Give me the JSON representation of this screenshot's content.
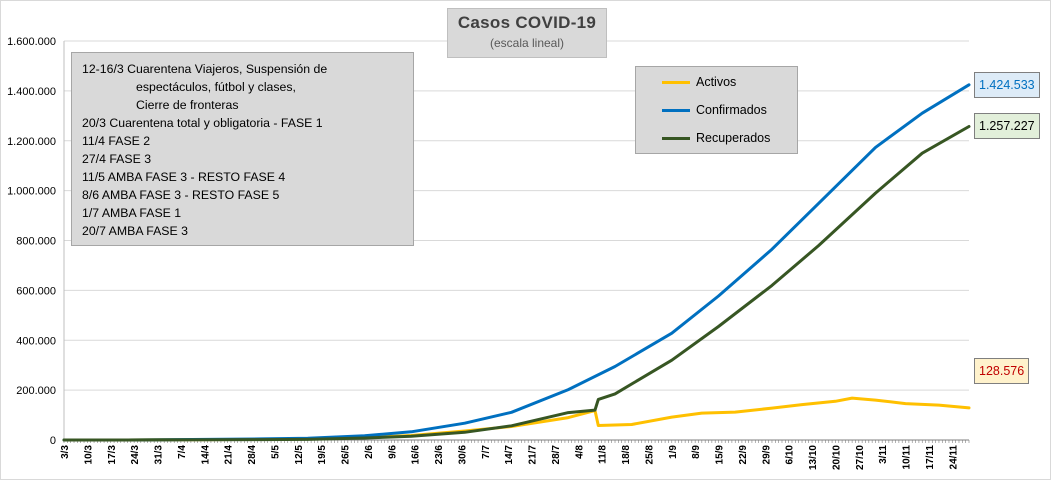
{
  "chart_data": {
    "type": "line",
    "title": "Casos COVID-19",
    "subtitle": "(escala lineal)",
    "xlabel": "",
    "ylabel": "",
    "ylim": [
      0,
      1600000
    ],
    "yticks": [
      0,
      200000,
      400000,
      600000,
      800000,
      1000000,
      1200000,
      1400000,
      1600000
    ],
    "ytick_labels": [
      "0",
      "200.000",
      "400.000",
      "600.000",
      "800.000",
      "1.000.000",
      "1.200.000",
      "1.400.000",
      "1.600.000"
    ],
    "x_start": "2020-03-03",
    "x_end": "2020-11-29",
    "xtick_labels": [
      "3/3",
      "10/3",
      "17/3",
      "24/3",
      "31/3",
      "7/4",
      "14/4",
      "21/4",
      "28/4",
      "5/5",
      "12/5",
      "19/5",
      "26/5",
      "2/6",
      "9/6",
      "16/6",
      "23/6",
      "30/6",
      "7/7",
      "14/7",
      "21/7",
      "28/7",
      "4/8",
      "11/8",
      "18/8",
      "25/8",
      "1/9",
      "8/9",
      "15/9",
      "22/9",
      "29/9",
      "6/10",
      "13/10",
      "20/10",
      "27/10",
      "3/11",
      "10/11",
      "17/11",
      "24/11"
    ],
    "grid": "horizontal",
    "legend_position": "top-right",
    "series": [
      {
        "name": "Activos",
        "color": "#ffc000",
        "end_label": "128.576",
        "points": [
          [
            "2020-03-03",
            0
          ],
          [
            "2020-03-20",
            100
          ],
          [
            "2020-04-01",
            700
          ],
          [
            "2020-04-15",
            1600
          ],
          [
            "2020-05-01",
            3000
          ],
          [
            "2020-05-15",
            4500
          ],
          [
            "2020-06-01",
            9500
          ],
          [
            "2020-06-15",
            18000
          ],
          [
            "2020-07-01",
            36000
          ],
          [
            "2020-07-15",
            54000
          ],
          [
            "2020-08-01",
            90000
          ],
          [
            "2020-08-09",
            118000
          ],
          [
            "2020-08-10",
            58000
          ],
          [
            "2020-08-20",
            62000
          ],
          [
            "2020-09-01",
            92000
          ],
          [
            "2020-09-10",
            108000
          ],
          [
            "2020-09-20",
            112000
          ],
          [
            "2020-10-01",
            128000
          ],
          [
            "2020-10-10",
            142000
          ],
          [
            "2020-10-20",
            155000
          ],
          [
            "2020-10-25",
            168000
          ],
          [
            "2020-11-01",
            160000
          ],
          [
            "2020-11-10",
            146000
          ],
          [
            "2020-11-20",
            140000
          ],
          [
            "2020-11-29",
            128576
          ]
        ]
      },
      {
        "name": "Confirmados",
        "color": "#0070c0",
        "end_label": "1.424.533",
        "points": [
          [
            "2020-03-03",
            0
          ],
          [
            "2020-03-20",
            128
          ],
          [
            "2020-04-01",
            1054
          ],
          [
            "2020-04-15",
            2443
          ],
          [
            "2020-05-01",
            4532
          ],
          [
            "2020-05-15",
            7134
          ],
          [
            "2020-06-01",
            17415
          ],
          [
            "2020-06-15",
            32785
          ],
          [
            "2020-07-01",
            67197
          ],
          [
            "2020-07-15",
            111146
          ],
          [
            "2020-08-01",
            201919
          ],
          [
            "2020-08-15",
            294569
          ],
          [
            "2020-09-01",
            428239
          ],
          [
            "2020-09-15",
            577338
          ],
          [
            "2020-10-01",
            765002
          ],
          [
            "2020-10-15",
            949063
          ],
          [
            "2020-11-01",
            1173533
          ],
          [
            "2020-11-15",
            1310491
          ],
          [
            "2020-11-29",
            1424533
          ]
        ]
      },
      {
        "name": "Recuperados",
        "color": "#375623",
        "end_label": "1.257.227",
        "points": [
          [
            "2020-03-03",
            0
          ],
          [
            "2020-03-20",
            30
          ],
          [
            "2020-04-01",
            350
          ],
          [
            "2020-04-15",
            850
          ],
          [
            "2020-05-01",
            1500
          ],
          [
            "2020-05-15",
            2600
          ],
          [
            "2020-06-01",
            7900
          ],
          [
            "2020-06-15",
            14800
          ],
          [
            "2020-07-01",
            31000
          ],
          [
            "2020-07-15",
            57000
          ],
          [
            "2020-08-01",
            110000
          ],
          [
            "2020-08-09",
            120000
          ],
          [
            "2020-08-10",
            163000
          ],
          [
            "2020-08-15",
            185000
          ],
          [
            "2020-09-01",
            320000
          ],
          [
            "2020-09-15",
            455000
          ],
          [
            "2020-10-01",
            620000
          ],
          [
            "2020-10-15",
            780000
          ],
          [
            "2020-11-01",
            990000
          ],
          [
            "2020-11-15",
            1150000
          ],
          [
            "2020-11-29",
            1257227
          ]
        ]
      }
    ]
  },
  "notes": [
    "12-16/3  Cuarentena Viajeros, Suspensión de",
    "espectáculos, fútbol y clases,",
    "Cierre de fronteras",
    "20/3  Cuarentena total y obligatoria - FASE 1",
    "11/4  FASE 2",
    "27/4  FASE 3",
    "11/5  AMBA FASE 3 - RESTO FASE 4",
    "8/6  AMBA FASE 3 - RESTO FASE 5",
    "1/7  AMBA FASE 1",
    "20/7  AMBA FASE 3"
  ],
  "colors": {
    "plot_background": "#ffffff",
    "gridline": "#d9d9d9",
    "label_bg_activos": "#fff2cc",
    "label_text_activos": "#c00000",
    "label_bg_confirmados": "#ddebf7",
    "label_text_confirmados": "#0070c0",
    "label_bg_recuperados": "#e2efda",
    "label_text_recuperados": "#000000"
  }
}
